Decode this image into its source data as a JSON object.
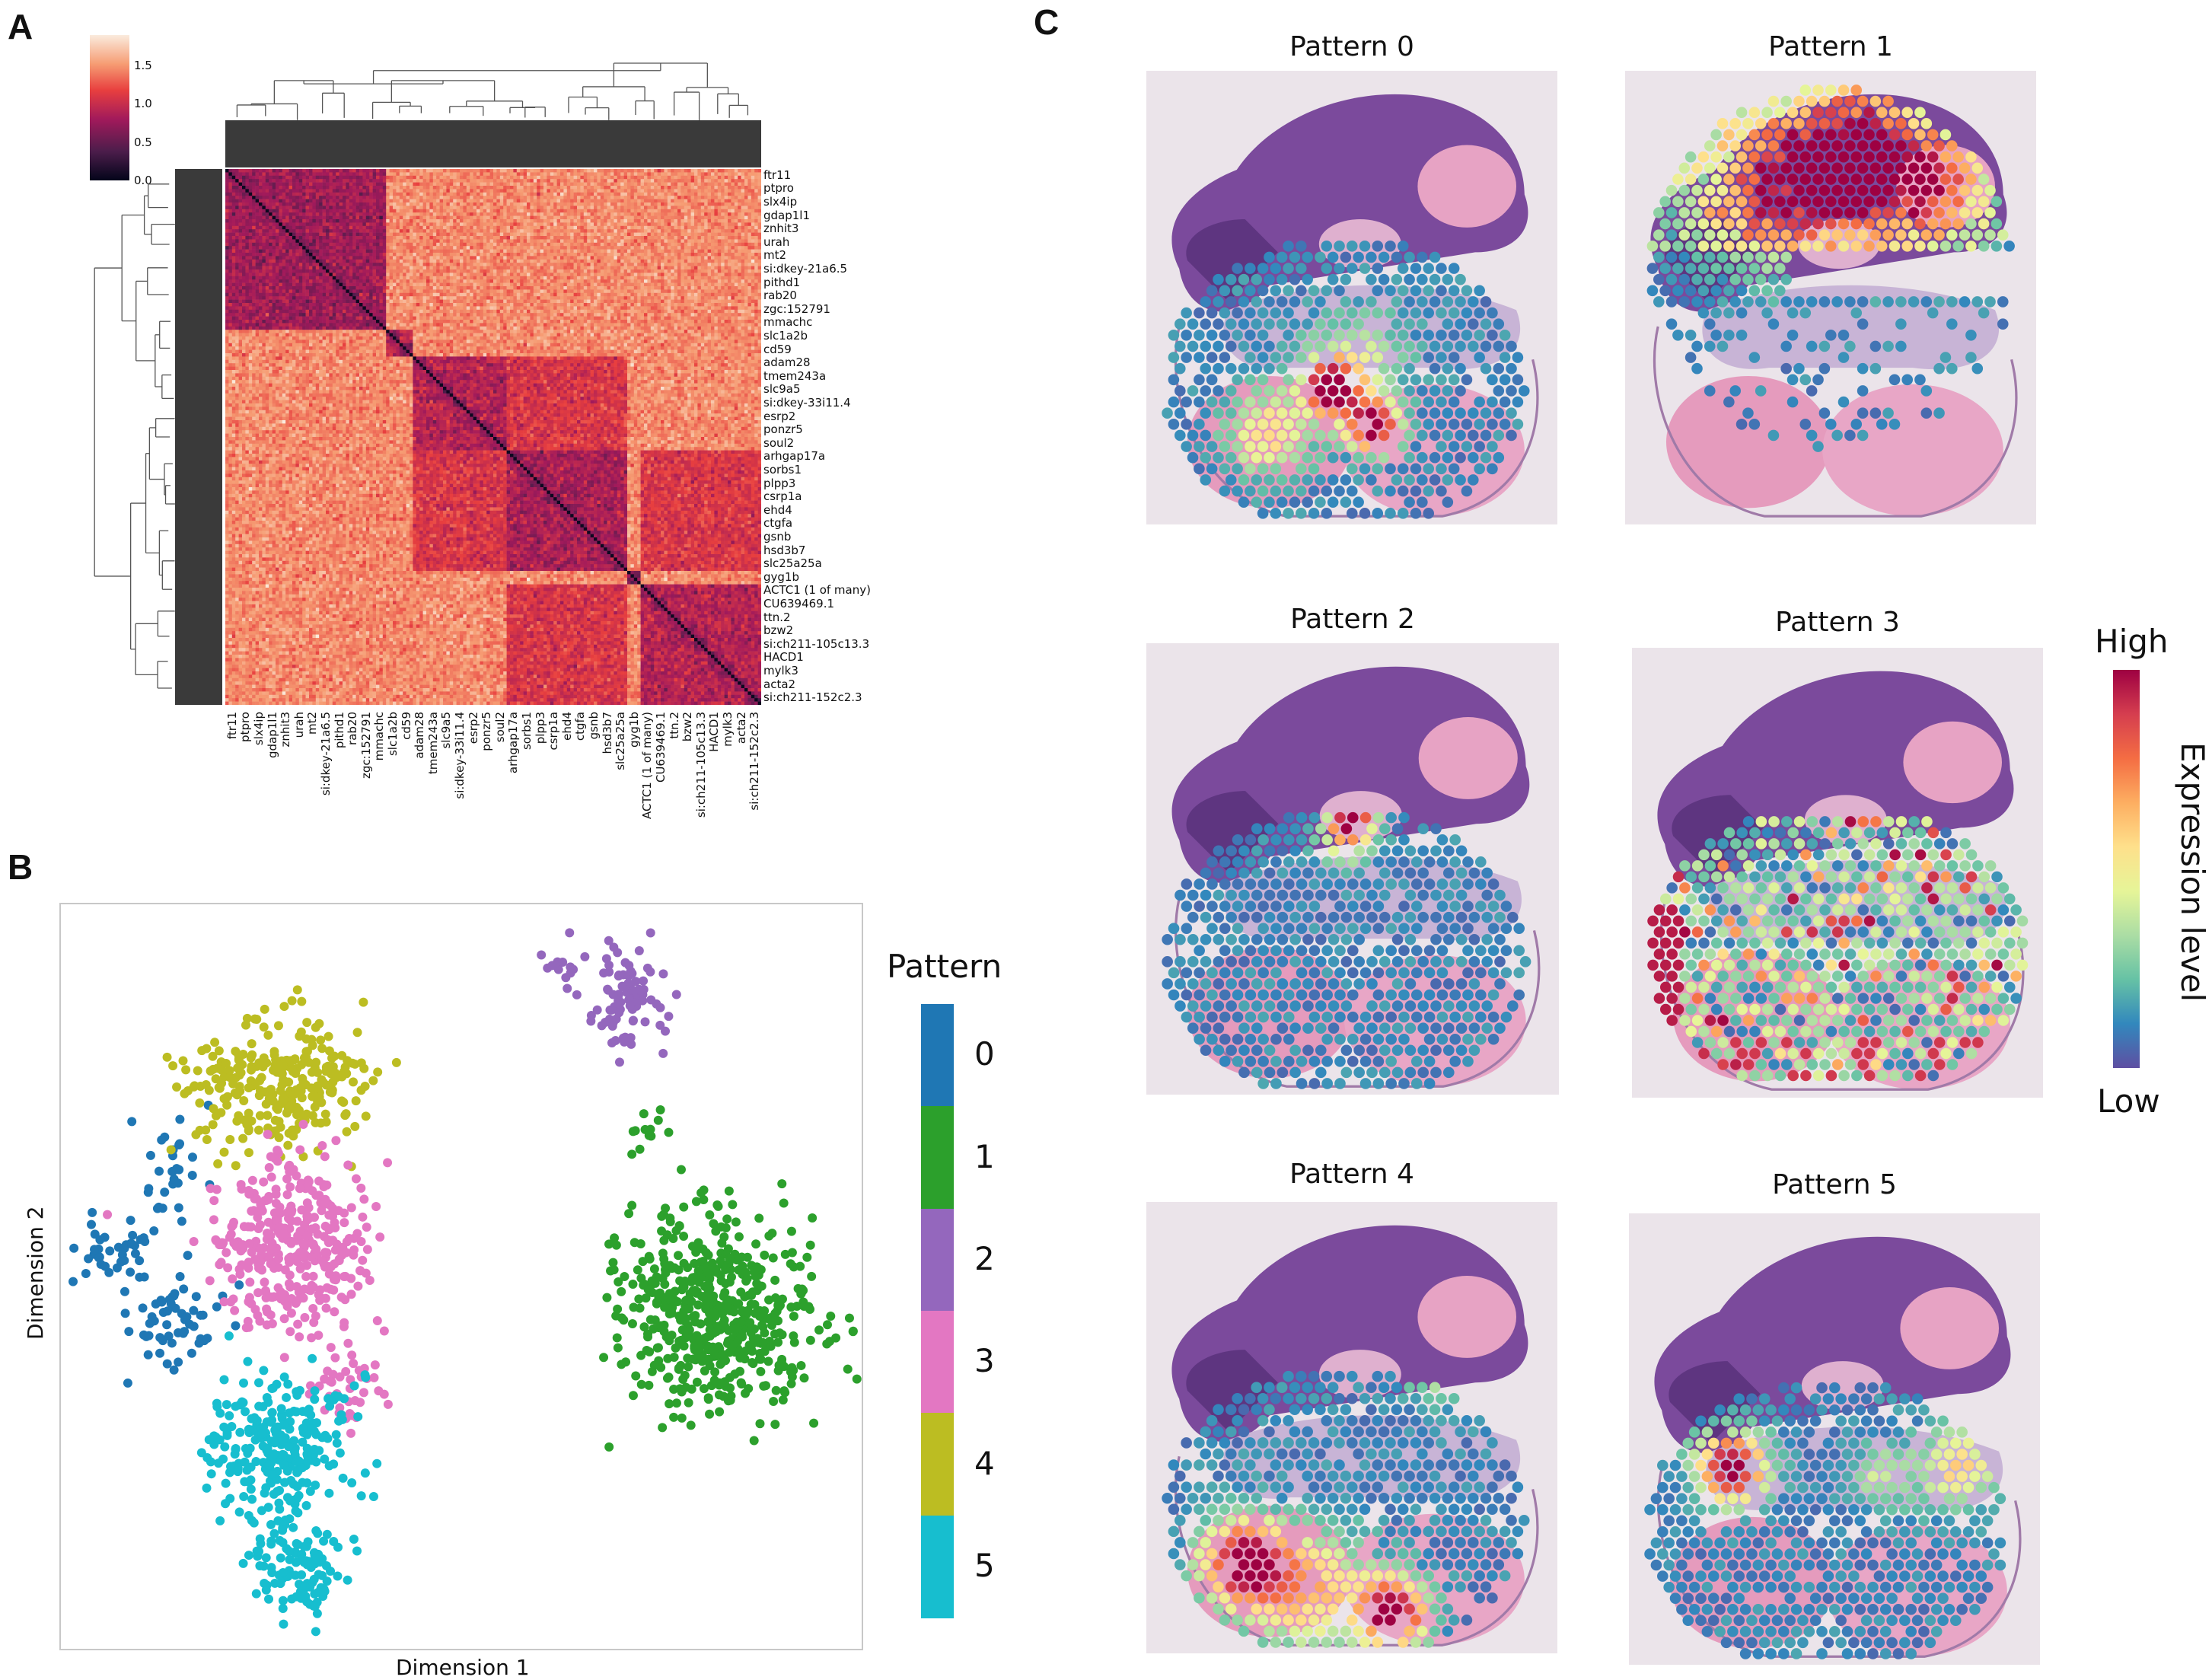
{
  "panel_letters": {
    "a": "A",
    "b": "B",
    "c": "C"
  },
  "chart_data": [
    {
      "type": "heatmap",
      "panel": "A",
      "row_labels": [
        "ftr11",
        "ptpro",
        "slx4ip",
        "gdap1l1",
        "znhit3",
        "urah",
        "mt2",
        "si:dkey-21a6.5",
        "pithd1",
        "rab20",
        "zgc:152791",
        "mmachc",
        "slc1a2b",
        "cd59",
        "adam28",
        "tmem243a",
        "slc9a5",
        "si:dkey-33i11.4",
        "esrp2",
        "ponzr5",
        "soul2",
        "arhgap17a",
        "sorbs1",
        "plpp3",
        "csrp1a",
        "ehd4",
        "ctgfa",
        "gsnb",
        "hsd3b7",
        "slc25a25a",
        "gyg1b",
        "ACTC1 (1 of many)",
        "CU639469.1",
        "ttn.2",
        "bzw2",
        "si:ch211-105c13.3",
        "HACD1",
        "mylk3",
        "acta2",
        "si:ch211-152c2.3"
      ],
      "col_labels": [
        "ftr11",
        "ptpro",
        "slx4ip",
        "gdap1l1",
        "znhit3",
        "urah",
        "mt2",
        "si:dkey-21a6.5",
        "pithd1",
        "rab20",
        "zgc:152791",
        "mmachc",
        "slc1a2b",
        "cd59",
        "adam28",
        "tmem243a",
        "slc9a5",
        "si:dkey-33i11.4",
        "esrp2",
        "ponzr5",
        "soul2",
        "arhgap17a",
        "sorbs1",
        "plpp3",
        "csrp1a",
        "ehd4",
        "ctgfa",
        "gsnb",
        "hsd3b7",
        "slc25a25a",
        "gyg1b",
        "ACTC1 (1 of many)",
        "CU639469.1",
        "ttn.2",
        "bzw2",
        "si:ch211-105c13.3",
        "HACD1",
        "mylk3",
        "acta2",
        "si:ch211-152c2.3"
      ],
      "colorbar": {
        "ticks": [
          "0.0",
          "0.5",
          "1.0",
          "1.5"
        ],
        "range": [
          0,
          1.9
        ],
        "colormap": "rocket"
      },
      "background_value": 1.45,
      "diagonal_value": 0.0,
      "blocks": [
        {
          "rows": [
            0,
            11
          ],
          "cols": [
            0,
            11
          ],
          "value": 0.75
        },
        {
          "rows": [
            12,
            13
          ],
          "cols": [
            12,
            13
          ],
          "value": 0.9
        },
        {
          "rows": [
            14,
            20
          ],
          "cols": [
            14,
            20
          ],
          "value": 0.85
        },
        {
          "rows": [
            21,
            29
          ],
          "cols": [
            21,
            29
          ],
          "value": 0.8
        },
        {
          "rows": [
            14,
            20
          ],
          "cols": [
            21,
            29
          ],
          "value": 1.05
        },
        {
          "rows": [
            21,
            29
          ],
          "cols": [
            14,
            20
          ],
          "value": 1.05
        },
        {
          "rows": [
            30,
            30
          ],
          "cols": [
            30,
            30
          ],
          "value": 0.8
        },
        {
          "rows": [
            31,
            39
          ],
          "cols": [
            31,
            39
          ],
          "value": 0.85
        },
        {
          "rows": [
            31,
            39
          ],
          "cols": [
            21,
            29
          ],
          "value": 1.05
        },
        {
          "rows": [
            21,
            29
          ],
          "cols": [
            31,
            39
          ],
          "value": 1.05
        }
      ],
      "dendrograms": true
    },
    {
      "type": "scatter",
      "panel": "B",
      "xlabel": "Dimension 1",
      "ylabel": "Dimension 2",
      "xlim": [
        0,
        100
      ],
      "ylim": [
        0,
        100
      ],
      "legend": {
        "title": "Pattern",
        "placement": "right",
        "entries": [
          "0",
          "1",
          "2",
          "3",
          "4",
          "5"
        ]
      },
      "series": [
        {
          "name": "0",
          "color": "#1f77b4",
          "clusters": [
            {
              "center": [
                7,
                53
              ],
              "spread": [
                3,
                2.5
              ],
              "n": 40
            },
            {
              "center": [
                14,
                44
              ],
              "spread": [
                4,
                4
              ],
              "n": 55
            },
            {
              "center": [
                14,
                64
              ],
              "spread": [
                3,
                5
              ],
              "n": 30
            }
          ]
        },
        {
          "name": "1",
          "color": "#2ca02c",
          "clusters": [
            {
              "center": [
                82,
                45
              ],
              "spread": [
                7.5,
                8
              ],
              "n": 560
            },
            {
              "center": [
                73,
                70
              ],
              "spread": [
                1.5,
                2.5
              ],
              "n": 12
            }
          ]
        },
        {
          "name": "2",
          "color": "#9467bd",
          "clusters": [
            {
              "center": [
                70,
                88
              ],
              "spread": [
                3,
                4
              ],
              "n": 90
            },
            {
              "center": [
                62,
                91
              ],
              "spread": [
                2,
                1
              ],
              "n": 10
            }
          ]
        },
        {
          "name": "3",
          "color": "#e377c2",
          "clusters": [
            {
              "center": [
                29,
                54
              ],
              "spread": [
                6,
                7
              ],
              "n": 360
            },
            {
              "center": [
                36,
                35
              ],
              "spread": [
                3,
                3
              ],
              "n": 40
            }
          ]
        },
        {
          "name": "4",
          "color": "#bcbd22",
          "clusters": [
            {
              "center": [
                27,
                76
              ],
              "spread": [
                7,
                5.5
              ],
              "n": 280
            }
          ]
        },
        {
          "name": "5",
          "color": "#17becf",
          "clusters": [
            {
              "center": [
                27,
                27
              ],
              "spread": [
                5.5,
                6
              ],
              "n": 260
            },
            {
              "center": [
                30,
                11
              ],
              "spread": [
                3.5,
                4
              ],
              "n": 110
            }
          ]
        }
      ],
      "grid": false
    },
    {
      "type": "spatial",
      "panel": "C",
      "panels": [
        {
          "title": "Pattern 0"
        },
        {
          "title": "Pattern 1"
        },
        {
          "title": "Pattern 2"
        },
        {
          "title": "Pattern 3"
        },
        {
          "title": "Pattern 4"
        },
        {
          "title": "Pattern 5"
        }
      ],
      "colorbar": {
        "high_label": "High",
        "low_label": "Low",
        "label": "Expression level",
        "colormap": "Spectral_r",
        "colors": [
          "#5e4fa2",
          "#3288bd",
          "#66c2a5",
          "#abdda4",
          "#e6f598",
          "#fee08b",
          "#fdae61",
          "#f46d43",
          "#d53e4f",
          "#9e0142"
        ]
      }
    }
  ]
}
